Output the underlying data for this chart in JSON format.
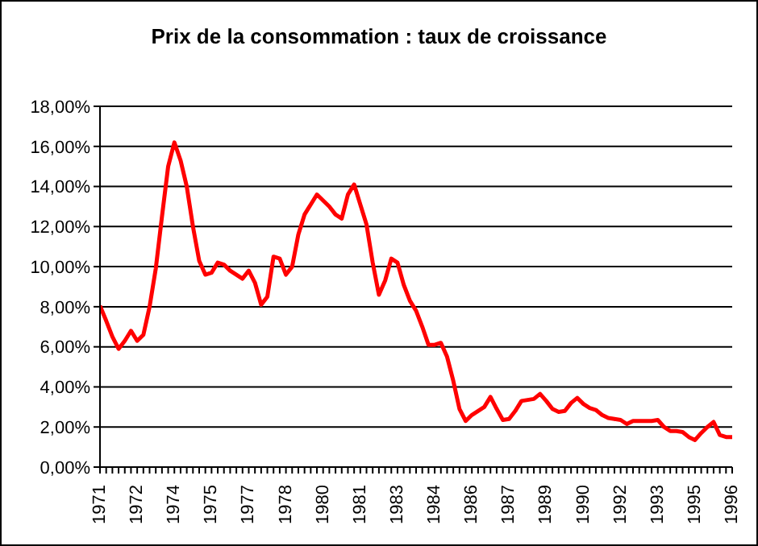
{
  "chart_data": {
    "type": "line",
    "title": "Prix de la consommation : taux de croissance",
    "categories": [
      "1971",
      null,
      null,
      null,
      null,
      null,
      "1972",
      null,
      null,
      null,
      null,
      null,
      "1974",
      null,
      null,
      null,
      null,
      null,
      "1975",
      null,
      null,
      null,
      null,
      null,
      "1977",
      null,
      null,
      null,
      null,
      null,
      "1978",
      null,
      null,
      null,
      null,
      null,
      "1980",
      null,
      null,
      null,
      null,
      null,
      "1981",
      null,
      null,
      null,
      null,
      null,
      "1983",
      null,
      null,
      null,
      null,
      null,
      "1984",
      null,
      null,
      null,
      null,
      null,
      "1986",
      null,
      null,
      null,
      null,
      null,
      "1987",
      null,
      null,
      null,
      null,
      null,
      "1989",
      null,
      null,
      null,
      null,
      null,
      "1990",
      null,
      null,
      null,
      null,
      null,
      "1992",
      null,
      null,
      null,
      null,
      null,
      "1993",
      null,
      null,
      null,
      null,
      null,
      "1995",
      null,
      null,
      null,
      null,
      null,
      "1996"
    ],
    "series": [
      {
        "color": "#ff0000",
        "values": [
          8.05,
          7.3,
          6.5,
          5.9,
          6.3,
          6.8,
          6.3,
          6.6,
          8.0,
          9.9,
          12.5,
          15.0,
          16.2,
          15.3,
          14.0,
          12.0,
          10.3,
          9.6,
          9.7,
          10.2,
          10.1,
          9.8,
          9.6,
          9.4,
          9.8,
          9.2,
          8.1,
          8.5,
          10.5,
          10.4,
          9.6,
          10.0,
          11.6,
          12.6,
          13.1,
          13.6,
          13.3,
          13.0,
          12.6,
          12.4,
          13.6,
          14.1,
          13.1,
          12.1,
          10.2,
          8.6,
          9.3,
          10.4,
          10.2,
          9.1,
          8.3,
          7.8,
          7.0,
          6.1,
          6.1,
          6.2,
          5.5,
          4.3,
          2.9,
          2.3,
          2.6,
          2.8,
          3.0,
          3.5,
          2.9,
          2.35,
          2.4,
          2.8,
          3.3,
          3.35,
          3.4,
          3.65,
          3.3,
          2.9,
          2.75,
          2.8,
          3.2,
          3.45,
          3.15,
          2.95,
          2.85,
          2.6,
          2.45,
          2.4,
          2.35,
          2.15,
          2.3,
          2.3,
          2.3,
          2.3,
          2.35,
          2.0,
          1.8,
          1.8,
          1.75,
          1.5,
          1.35,
          1.7,
          2.0,
          2.25,
          1.6,
          1.5,
          1.5
        ]
      }
    ],
    "ylim": [
      0,
      18
    ],
    "yticks": [
      {
        "value": 0,
        "label": "0,00%"
      },
      {
        "value": 2,
        "label": "2,00%"
      },
      {
        "value": 4,
        "label": "4,00%"
      },
      {
        "value": 6,
        "label": "6,00%"
      },
      {
        "value": 8,
        "label": "8,00%"
      },
      {
        "value": 10,
        "label": "10,00%"
      },
      {
        "value": 12,
        "label": "12,00%"
      },
      {
        "value": 14,
        "label": "14,00%"
      },
      {
        "value": 16,
        "label": "16,00%"
      },
      {
        "value": 18,
        "label": "18,00%"
      }
    ],
    "grid": "y",
    "legend": false,
    "marker": "none",
    "line_style": "solid"
  }
}
